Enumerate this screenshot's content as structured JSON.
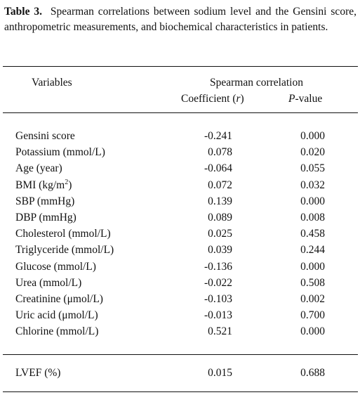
{
  "table": {
    "caption_label": "Table 3.",
    "caption_text": "Spearman correlations between sodium level and the Gensini score, anthropometric measurements, and biochemical characteristics in patients.",
    "header": {
      "variables": "Variables",
      "group": "Spearman correlation",
      "coefficient": "Coefficient (",
      "coefficient_symbol": "r",
      "coefficient_close": ")",
      "pvalue_symbol": "P",
      "pvalue_rest": "-value"
    },
    "rows": [
      {
        "variable": "Gensini score",
        "coefficient": "-0.241",
        "p": "0.000"
      },
      {
        "variable": "Potassium (mmol/L)",
        "coefficient": "0.078",
        "p": "0.020"
      },
      {
        "variable": "Age (year)",
        "coefficient": "-0.064",
        "p": "0.055"
      },
      {
        "variable": "BMI (kg/m",
        "sup": "2",
        "variable_close": ")",
        "coefficient": "0.072",
        "p": "0.032"
      },
      {
        "variable": "SBP (mmHg)",
        "coefficient": "0.139",
        "p": "0.000"
      },
      {
        "variable": "DBP (mmHg)",
        "coefficient": "0.089",
        "p": "0.008"
      },
      {
        "variable": "Cholesterol (mmol/L)",
        "coefficient": "0.025",
        "p": "0.458"
      },
      {
        "variable": "Triglyceride (mmol/L)",
        "coefficient": "0.039",
        "p": "0.244"
      },
      {
        "variable": "Glucose (mmol/L)",
        "coefficient": "-0.136",
        "p": "0.000"
      },
      {
        "variable": "Urea (mmol/L)",
        "coefficient": "-0.022",
        "p": "0.508"
      },
      {
        "variable": "Creatinine (μmol/L)",
        "coefficient": "-0.103",
        "p": "0.002"
      },
      {
        "variable": "Uric acid (μmol/L)",
        "coefficient": "-0.013",
        "p": "0.700"
      },
      {
        "variable": "Chlorine (mmol/L)",
        "coefficient": "0.521",
        "p": "0.000"
      }
    ],
    "footer_row": {
      "variable": "LVEF (%)",
      "coefficient": "0.015",
      "p": "0.688"
    }
  }
}
